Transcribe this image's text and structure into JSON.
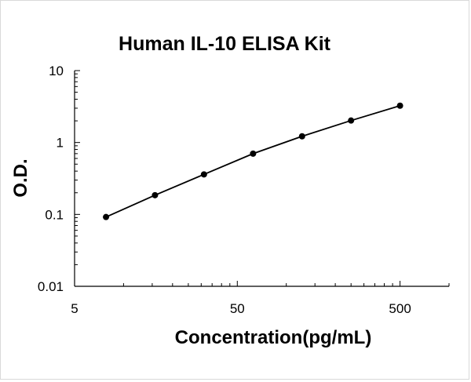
{
  "chart_data": {
    "type": "line",
    "title": "Human IL-10 ELISA Kit",
    "xlabel": "Concentration(pg/mL)",
    "ylabel": "O.D.",
    "x_scale": "log",
    "y_scale": "log",
    "xlim": [
      5,
      1000
    ],
    "ylim": [
      0.01,
      10
    ],
    "x_ticks": [
      5,
      50,
      500
    ],
    "x_tick_labels": [
      "5",
      "50",
      "500"
    ],
    "y_ticks": [
      0.01,
      0.1,
      1,
      10
    ],
    "y_tick_labels": [
      "0.01",
      "0.1",
      "1",
      "10"
    ],
    "grid": false,
    "legend": "none",
    "series": [
      {
        "x": [
          7.8,
          15.6,
          31.2,
          62.5,
          125,
          250,
          500
        ],
        "y": [
          0.092,
          0.185,
          0.36,
          0.7,
          1.22,
          2.02,
          3.25
        ]
      }
    ],
    "colors": {
      "line": "#000000",
      "marker": "#000000",
      "axis": "#000000"
    }
  }
}
